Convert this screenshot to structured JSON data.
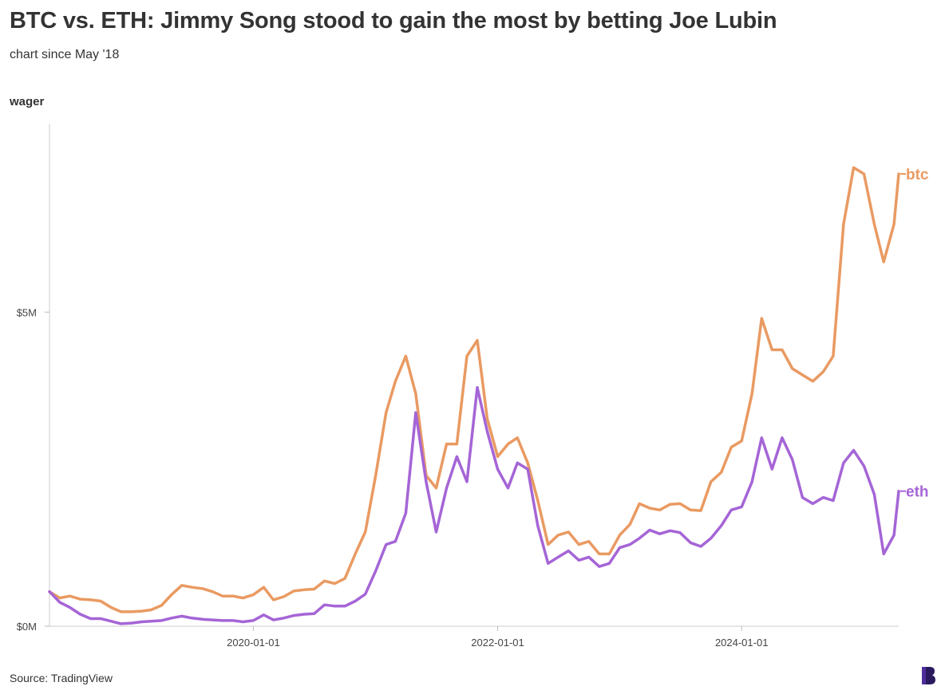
{
  "header": {
    "title": "BTC vs. ETH: Jimmy Song stood to gain the most by betting Joe Lubin",
    "subtitle": "chart since May '18"
  },
  "footer": {
    "source": "Source: TradingView",
    "logo_icon": "brand-logo-icon"
  },
  "colors": {
    "btc": "#E99A62",
    "eth": "#A565D6",
    "axis": "#dddddd",
    "logo": "#2B1A5E"
  },
  "chart_data": {
    "type": "line",
    "ylabel": "wager",
    "xlabel": "",
    "x_ticks": [
      "2020-01-01",
      "2022-01-01",
      "2024-01-01"
    ],
    "y_ticks": [
      {
        "value": 0,
        "label": "$0M"
      },
      {
        "value": 5000000,
        "label": "$5M"
      }
    ],
    "ylim": [
      0,
      8000000
    ],
    "xlim": [
      "2018-05-01",
      "2025-04-15"
    ],
    "grid": false,
    "legend": "end-of-line labels",
    "series": [
      {
        "name": "btc",
        "points": [
          [
            "2018-05-01",
            550000
          ],
          [
            "2018-06-01",
            450000
          ],
          [
            "2018-07-01",
            480000
          ],
          [
            "2018-08-01",
            430000
          ],
          [
            "2018-09-01",
            420000
          ],
          [
            "2018-10-01",
            400000
          ],
          [
            "2018-11-01",
            300000
          ],
          [
            "2018-12-01",
            230000
          ],
          [
            "2019-01-01",
            230000
          ],
          [
            "2019-02-01",
            240000
          ],
          [
            "2019-03-01",
            260000
          ],
          [
            "2019-04-01",
            330000
          ],
          [
            "2019-05-01",
            500000
          ],
          [
            "2019-06-01",
            650000
          ],
          [
            "2019-07-01",
            620000
          ],
          [
            "2019-08-01",
            600000
          ],
          [
            "2019-09-01",
            550000
          ],
          [
            "2019-10-01",
            480000
          ],
          [
            "2019-11-01",
            480000
          ],
          [
            "2019-12-01",
            450000
          ],
          [
            "2020-01-01",
            500000
          ],
          [
            "2020-02-01",
            620000
          ],
          [
            "2020-03-01",
            420000
          ],
          [
            "2020-04-01",
            470000
          ],
          [
            "2020-05-01",
            560000
          ],
          [
            "2020-06-01",
            580000
          ],
          [
            "2020-07-01",
            590000
          ],
          [
            "2020-08-01",
            720000
          ],
          [
            "2020-09-01",
            680000
          ],
          [
            "2020-10-01",
            760000
          ],
          [
            "2020-11-01",
            1150000
          ],
          [
            "2020-12-01",
            1500000
          ],
          [
            "2021-01-01",
            2400000
          ],
          [
            "2021-02-01",
            3400000
          ],
          [
            "2021-03-01",
            3900000
          ],
          [
            "2021-04-01",
            4300000
          ],
          [
            "2021-05-01",
            3700000
          ],
          [
            "2021-06-01",
            2400000
          ],
          [
            "2021-07-01",
            2200000
          ],
          [
            "2021-08-01",
            2900000
          ],
          [
            "2021-09-01",
            2900000
          ],
          [
            "2021-10-01",
            4300000
          ],
          [
            "2021-11-01",
            4550000
          ],
          [
            "2021-12-01",
            3300000
          ],
          [
            "2022-01-01",
            2700000
          ],
          [
            "2022-02-01",
            2900000
          ],
          [
            "2022-03-01",
            3000000
          ],
          [
            "2022-04-01",
            2600000
          ],
          [
            "2022-05-01",
            2000000
          ],
          [
            "2022-06-01",
            1300000
          ],
          [
            "2022-07-01",
            1450000
          ],
          [
            "2022-08-01",
            1500000
          ],
          [
            "2022-09-01",
            1300000
          ],
          [
            "2022-10-01",
            1350000
          ],
          [
            "2022-11-01",
            1150000
          ],
          [
            "2022-12-01",
            1150000
          ],
          [
            "2023-01-01",
            1450000
          ],
          [
            "2023-02-01",
            1620000
          ],
          [
            "2023-03-01",
            1950000
          ],
          [
            "2023-04-01",
            1880000
          ],
          [
            "2023-05-01",
            1850000
          ],
          [
            "2023-06-01",
            1940000
          ],
          [
            "2023-07-01",
            1950000
          ],
          [
            "2023-08-01",
            1850000
          ],
          [
            "2023-09-01",
            1840000
          ],
          [
            "2023-10-01",
            2300000
          ],
          [
            "2023-11-01",
            2450000
          ],
          [
            "2023-12-01",
            2850000
          ],
          [
            "2024-01-01",
            2950000
          ],
          [
            "2024-02-01",
            3700000
          ],
          [
            "2024-03-01",
            4900000
          ],
          [
            "2024-04-01",
            4400000
          ],
          [
            "2024-05-01",
            4400000
          ],
          [
            "2024-06-01",
            4100000
          ],
          [
            "2024-07-01",
            4000000
          ],
          [
            "2024-08-01",
            3900000
          ],
          [
            "2024-09-01",
            4050000
          ],
          [
            "2024-10-01",
            4300000
          ],
          [
            "2024-11-01",
            6400000
          ],
          [
            "2024-12-01",
            7300000
          ],
          [
            "2025-01-01",
            7200000
          ],
          [
            "2025-02-01",
            6400000
          ],
          [
            "2025-03-01",
            5800000
          ],
          [
            "2025-04-01",
            6400000
          ],
          [
            "2025-04-15",
            7200000
          ]
        ]
      },
      {
        "name": "eth",
        "points": [
          [
            "2018-05-01",
            550000
          ],
          [
            "2018-06-01",
            380000
          ],
          [
            "2018-07-01",
            300000
          ],
          [
            "2018-08-01",
            190000
          ],
          [
            "2018-09-01",
            120000
          ],
          [
            "2018-10-01",
            120000
          ],
          [
            "2018-11-01",
            80000
          ],
          [
            "2018-12-01",
            40000
          ],
          [
            "2019-01-01",
            50000
          ],
          [
            "2019-02-01",
            70000
          ],
          [
            "2019-03-01",
            80000
          ],
          [
            "2019-04-01",
            90000
          ],
          [
            "2019-05-01",
            130000
          ],
          [
            "2019-06-01",
            160000
          ],
          [
            "2019-07-01",
            130000
          ],
          [
            "2019-08-01",
            110000
          ],
          [
            "2019-09-01",
            100000
          ],
          [
            "2019-10-01",
            90000
          ],
          [
            "2019-11-01",
            90000
          ],
          [
            "2019-12-01",
            70000
          ],
          [
            "2020-01-01",
            90000
          ],
          [
            "2020-02-01",
            180000
          ],
          [
            "2020-03-01",
            100000
          ],
          [
            "2020-04-01",
            130000
          ],
          [
            "2020-05-01",
            170000
          ],
          [
            "2020-06-01",
            190000
          ],
          [
            "2020-07-01",
            200000
          ],
          [
            "2020-08-01",
            340000
          ],
          [
            "2020-09-01",
            320000
          ],
          [
            "2020-10-01",
            320000
          ],
          [
            "2020-11-01",
            400000
          ],
          [
            "2020-12-01",
            510000
          ],
          [
            "2021-01-01",
            880000
          ],
          [
            "2021-02-01",
            1300000
          ],
          [
            "2021-03-01",
            1350000
          ],
          [
            "2021-04-01",
            1800000
          ],
          [
            "2021-05-01",
            3400000
          ],
          [
            "2021-06-01",
            2300000
          ],
          [
            "2021-07-01",
            1500000
          ],
          [
            "2021-08-01",
            2200000
          ],
          [
            "2021-09-01",
            2700000
          ],
          [
            "2021-10-01",
            2300000
          ],
          [
            "2021-11-01",
            3800000
          ],
          [
            "2021-12-01",
            3100000
          ],
          [
            "2022-01-01",
            2500000
          ],
          [
            "2022-02-01",
            2200000
          ],
          [
            "2022-03-01",
            2600000
          ],
          [
            "2022-04-01",
            2500000
          ],
          [
            "2022-05-01",
            1600000
          ],
          [
            "2022-06-01",
            1000000
          ],
          [
            "2022-07-01",
            1100000
          ],
          [
            "2022-08-01",
            1200000
          ],
          [
            "2022-09-01",
            1050000
          ],
          [
            "2022-10-01",
            1100000
          ],
          [
            "2022-11-01",
            950000
          ],
          [
            "2022-12-01",
            1000000
          ],
          [
            "2023-01-01",
            1250000
          ],
          [
            "2023-02-01",
            1300000
          ],
          [
            "2023-03-01",
            1400000
          ],
          [
            "2023-04-01",
            1530000
          ],
          [
            "2023-05-01",
            1470000
          ],
          [
            "2023-06-01",
            1520000
          ],
          [
            "2023-07-01",
            1490000
          ],
          [
            "2023-08-01",
            1330000
          ],
          [
            "2023-09-01",
            1270000
          ],
          [
            "2023-10-01",
            1400000
          ],
          [
            "2023-11-01",
            1600000
          ],
          [
            "2023-12-01",
            1850000
          ],
          [
            "2024-01-01",
            1900000
          ],
          [
            "2024-02-01",
            2300000
          ],
          [
            "2024-03-01",
            3000000
          ],
          [
            "2024-04-01",
            2500000
          ],
          [
            "2024-05-01",
            3000000
          ],
          [
            "2024-06-01",
            2650000
          ],
          [
            "2024-07-01",
            2050000
          ],
          [
            "2024-08-01",
            1950000
          ],
          [
            "2024-09-01",
            2050000
          ],
          [
            "2024-10-01",
            2000000
          ],
          [
            "2024-11-01",
            2600000
          ],
          [
            "2024-12-01",
            2800000
          ],
          [
            "2025-01-01",
            2550000
          ],
          [
            "2025-02-01",
            2100000
          ],
          [
            "2025-03-01",
            1150000
          ],
          [
            "2025-04-01",
            1450000
          ],
          [
            "2025-04-15",
            2150000
          ]
        ]
      }
    ]
  }
}
